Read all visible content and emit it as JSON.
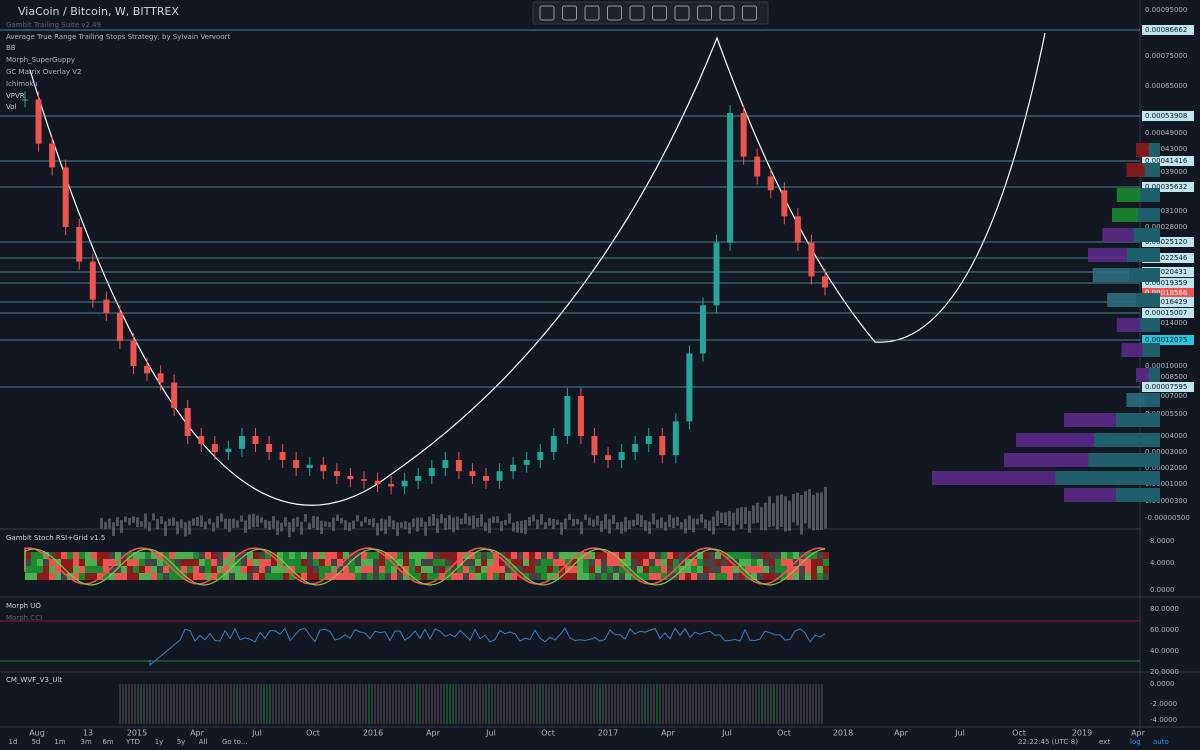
{
  "header": {
    "symbol": "ViaCoin / Bitcoin, W, BITTREX"
  },
  "indicators": [
    "Gambit Trailing Suite v2.49",
    "Average True Range Trailing Stops Strategy, by Sylvain Vervoort",
    "BB",
    "Morph_SuperGuppy",
    "GC Matrix Overlay V2",
    "Ichimoku",
    "VPVR",
    "Vol"
  ],
  "price_axis": [
    "0.00095000",
    "0.00086662",
    "0.00075000",
    "0.00065000",
    "0.00053908",
    "0.00049000",
    "0.00043000",
    "0.00041416",
    "0.00039000",
    "0.00035632",
    "0.00031000",
    "0.00028000",
    "0.00025120",
    "0.00022546",
    "0.00020431",
    "0.00019359",
    "0.00018566",
    "0.00016429",
    "0.00015007",
    "0.00014000",
    "0.00012075",
    "0.00010000",
    "0.00008500",
    "0.00007595",
    "0.00007000",
    "0.00005500",
    "0.00004000",
    "0.00003000",
    "0.00002000",
    "0.00001000",
    "0.00000300",
    "-0.00000500"
  ],
  "price": {
    "closes": [
      0.0006,
      0.00045,
      0.0004,
      0.00028,
      0.00022,
      0.00017,
      0.00015,
      0.00012,
      0.0001,
      9e-05,
      8e-05,
      6e-05,
      4e-05,
      3.5e-05,
      3e-05,
      3.2e-05,
      4e-05,
      3.5e-05,
      3e-05,
      2.5e-05,
      2e-05,
      2.2e-05,
      1.8e-05,
      1.5e-05,
      1.3e-05,
      1.2e-05,
      1e-05,
      9e-06,
      1.2e-05,
      1.5e-05,
      2e-05,
      2.5e-05,
      1.8e-05,
      1.5e-05,
      1.2e-05,
      1.8e-05,
      2.2e-05,
      2.5e-05,
      3e-05,
      4e-05,
      7e-05,
      4e-05,
      2.8e-05,
      2.5e-05,
      3e-05,
      3.5e-05,
      4e-05,
      2.8e-05,
      5e-05,
      0.00011,
      0.00016,
      0.00025,
      0.00055,
      0.00042,
      0.00038,
      0.00035,
      0.0003,
      0.00025,
      0.0002,
      0.00019
    ]
  },
  "panes": [
    {
      "title": "Gambit Stoch RSI+Grid v1.5",
      "axis": [
        "8.0000",
        "4.0000",
        "0.0000"
      ]
    },
    {
      "title": "Morph UO",
      "subtitle": "Morph CCI",
      "axis": [
        "80.0000",
        "60.0000",
        "40.0000",
        "20.0000"
      ]
    },
    {
      "title": "CM_WVF_V3_Ult",
      "axis": [
        "0.0000",
        "-2.0000",
        "-4.0000"
      ]
    }
  ],
  "time_axis": [
    "Aug",
    "13",
    "2015",
    "Apr",
    "Jul",
    "Oct",
    "2016",
    "Apr",
    "Jul",
    "Oct",
    "2017",
    "Apr",
    "Jul",
    "Oct",
    "2018",
    "Apr",
    "Jul",
    "Oct",
    "2019",
    "Apr"
  ],
  "toolbar": {
    "ranges": [
      "1d",
      "5d",
      "1m",
      "3m",
      "6m",
      "YTD",
      "1y",
      "5y",
      "All"
    ],
    "goto": "Go to...",
    "clock": "22:22:45 (UTC-8)",
    "toggles": [
      "ext",
      "log",
      "auto"
    ]
  }
}
